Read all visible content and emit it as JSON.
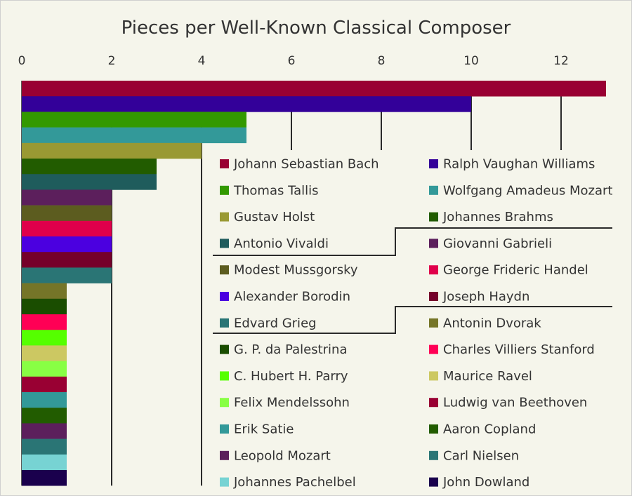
{
  "chart_data": {
    "type": "bar",
    "orientation": "horizontal",
    "title": "Pieces per Well-Known Classical Composer",
    "xlim": [
      0,
      13
    ],
    "xticks": [
      0,
      2,
      4,
      6,
      8,
      10,
      12
    ],
    "x_axis_position": "top",
    "grid": true,
    "legend_placement": "bottom-right",
    "categories": [
      "Johann Sebastian Bach",
      "Ralph Vaughan Williams",
      "Thomas Tallis",
      "Wolfgang Amadeus Mozart",
      "Gustav Holst",
      "Johannes Brahms",
      "Antonio Vivaldi",
      "Giovanni Gabrieli",
      "Modest Mussgorsky",
      "George Frideric Handel",
      "Alexander Borodin",
      "Joseph Haydn",
      "Edvard Grieg",
      "Antonin Dvorak",
      "G. P. da Palestrina",
      "Charles Villiers Stanford",
      "C. Hubert H. Parry",
      "Maurice Ravel",
      "Felix Mendelssohn",
      "Ludwig van Beethoven",
      "Erik Satie",
      "Aaron Copland",
      "Leopold Mozart",
      "Carl Nielsen",
      "Johannes Pachelbel",
      "John Dowland"
    ],
    "values": [
      13,
      10,
      5,
      5,
      4,
      3,
      3,
      2,
      2,
      2,
      2,
      2,
      2,
      1,
      1,
      1,
      1,
      1,
      1,
      1,
      1,
      1,
      1,
      1,
      1,
      1
    ],
    "colors": [
      "#990033",
      "#330099",
      "#339900",
      "#339999",
      "#999933",
      "#225c00",
      "#1f5c5c",
      "#5c1f5c",
      "#5c5c1f",
      "#e0004b",
      "#4b00e0",
      "#75002a",
      "#2a7575",
      "#757528",
      "#1a4d00",
      "#ff0055",
      "#55ff00",
      "#ccc862",
      "#88ff44",
      "#990033",
      "#339999",
      "#225c00",
      "#5c1f5c",
      "#2a7575",
      "#77d3d3",
      "#1a004d"
    ]
  }
}
